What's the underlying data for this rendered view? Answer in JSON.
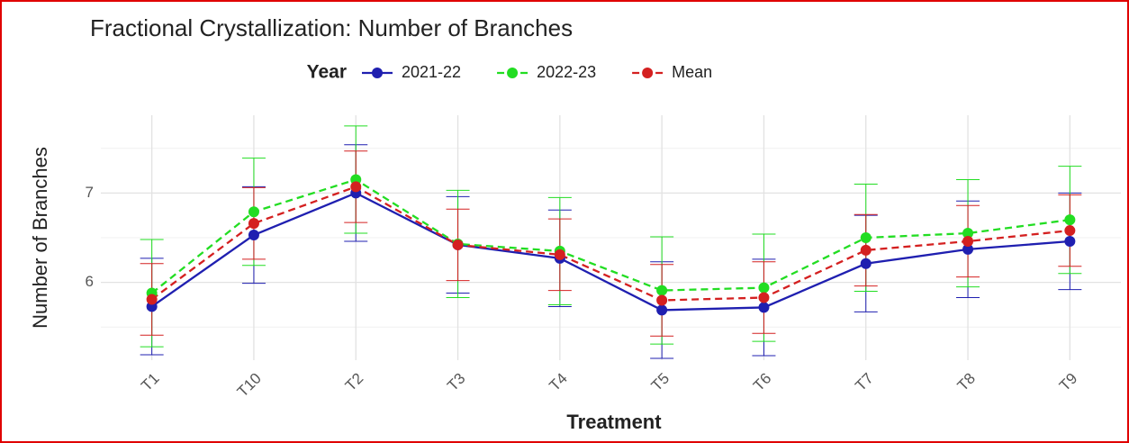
{
  "chart_data": {
    "type": "line",
    "title": "Fractional Crystallization: Number of Branches",
    "legend_title": "Year",
    "x_label": "Treatment",
    "y_label": "Number of Branches",
    "categories": [
      "T1",
      "T10",
      "T2",
      "T3",
      "T4",
      "T5",
      "T6",
      "T7",
      "T8",
      "T9"
    ],
    "series": [
      {
        "name": "2021-22",
        "color": "#1f1fb0",
        "dash": false,
        "values": [
          5.73,
          6.53,
          7.0,
          6.42,
          6.27,
          5.69,
          5.72,
          6.21,
          6.37,
          6.46
        ],
        "errors": [
          0.54,
          0.54,
          0.54,
          0.54,
          0.54,
          0.54,
          0.54,
          0.54,
          0.54,
          0.54
        ]
      },
      {
        "name": "2022-23",
        "color": "#22dd22",
        "dash": true,
        "values": [
          5.88,
          6.79,
          7.15,
          6.43,
          6.35,
          5.91,
          5.94,
          6.5,
          6.55,
          6.7
        ],
        "errors": [
          0.6,
          0.6,
          0.6,
          0.6,
          0.6,
          0.6,
          0.6,
          0.6,
          0.6,
          0.6
        ]
      },
      {
        "name": "Mean",
        "color": "#d42020",
        "dash": true,
        "values": [
          5.81,
          6.66,
          7.07,
          6.42,
          6.31,
          5.8,
          5.83,
          6.36,
          6.46,
          6.58
        ],
        "errors": [
          0.4,
          0.4,
          0.4,
          0.4,
          0.4,
          0.4,
          0.4,
          0.4,
          0.4,
          0.4
        ]
      }
    ],
    "ylim": [
      5.13,
      7.87
    ],
    "yticks": [
      6,
      7
    ],
    "y_minor_grid": [
      5.5,
      6.5,
      7.5
    ],
    "grid": true,
    "legend_position": "top"
  }
}
